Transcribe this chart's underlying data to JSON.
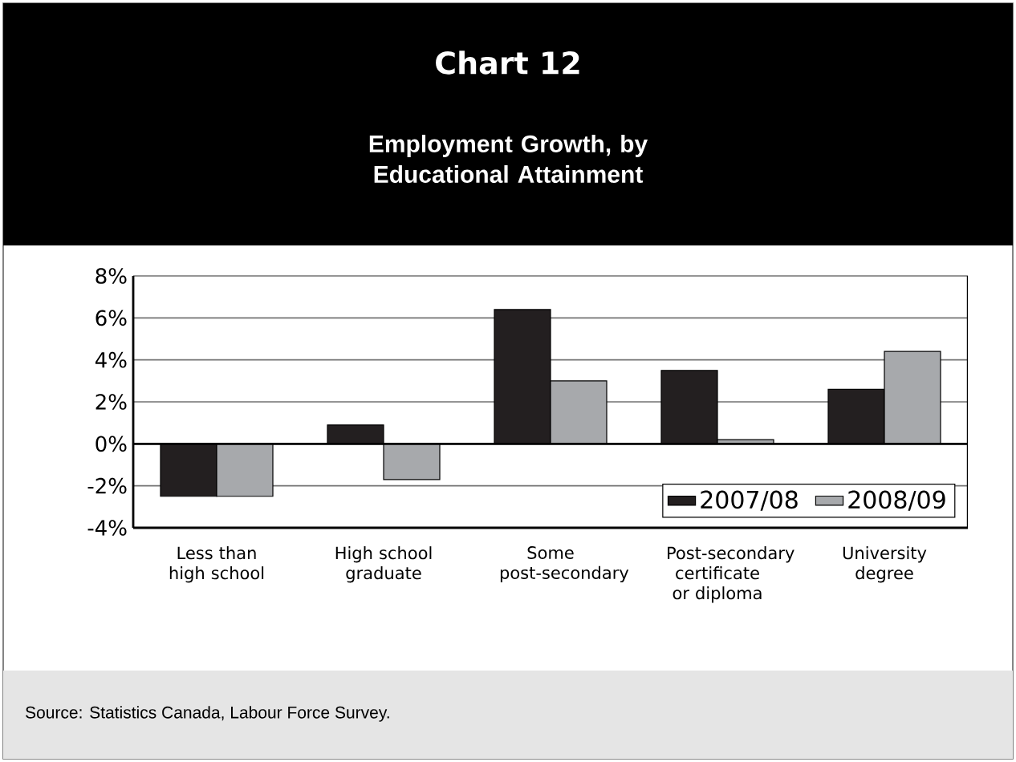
{
  "chart_data": {
    "type": "bar",
    "title": "Chart 12",
    "subtitle": "Employment Growth, by Educational Attainment",
    "categories": [
      "Less than high school",
      "High school graduate",
      "Some post-secondary",
      "Post-secondary certificate or diploma",
      "University degree"
    ],
    "series": [
      {
        "name": "2007/08",
        "color": "#231f20",
        "values": [
          -2.5,
          0.9,
          6.4,
          3.5,
          2.6
        ]
      },
      {
        "name": "2008/09",
        "color": "#a7a9ac",
        "values": [
          -2.5,
          -1.7,
          3.0,
          0.2,
          4.4
        ]
      }
    ],
    "ylim": [
      -4,
      8
    ],
    "yticks": [
      {
        "value": -4,
        "label": "-4%"
      },
      {
        "value": -2,
        "label": "-2%"
      },
      {
        "value": 0,
        "label": "0%"
      },
      {
        "value": 2,
        "label": "2%"
      },
      {
        "value": 4,
        "label": "4%"
      },
      {
        "value": 6,
        "label": "6%"
      },
      {
        "value": 8,
        "label": "8%"
      }
    ],
    "grid": "y",
    "legend": "bottom right",
    "annotations": [
      "Source: Statistics Canada, Labour Force Survey."
    ]
  }
}
